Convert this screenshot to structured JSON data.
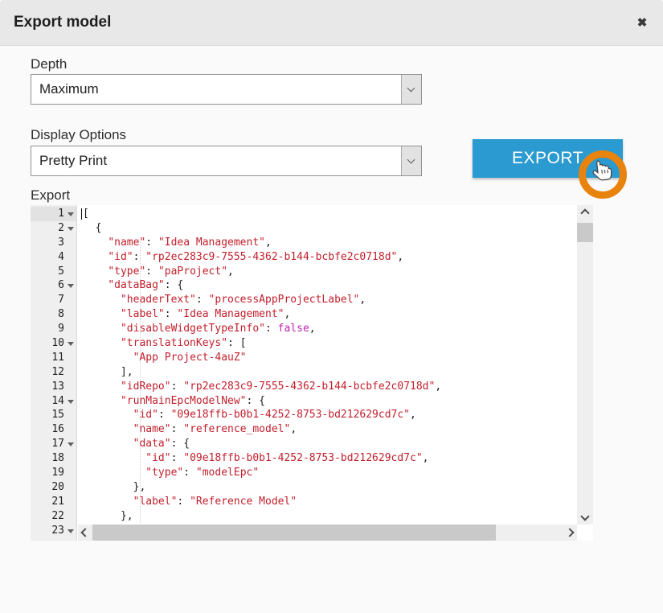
{
  "dialog": {
    "title": "Export model",
    "close_icon": "✖"
  },
  "form": {
    "depth_label": "Depth",
    "depth_value": "Maximum",
    "display_options_label": "Display Options",
    "display_options_value": "Pretty Print",
    "export_button_label": "EXPORT",
    "export_area_label": "Export"
  },
  "colors": {
    "accent_blue": "#2b9ad0",
    "annotation_ring_orange": "#e8830d",
    "syntax_string_red": "#c21f2c",
    "syntax_atom_magenta": "#bd22ae",
    "header_gray": "#e8e8e8"
  },
  "editor": {
    "language": "json",
    "active_line": 1,
    "lines": [
      {
        "n": 1,
        "fold": true,
        "seg": [
          [
            "p",
            "["
          ]
        ]
      },
      {
        "n": 2,
        "fold": true,
        "seg": [
          [
            "p",
            "  {"
          ]
        ]
      },
      {
        "n": 3,
        "fold": false,
        "seg": [
          [
            "p",
            "    "
          ],
          [
            "s",
            "\"name\""
          ],
          [
            "p",
            ": "
          ],
          [
            "s",
            "\"Idea Management\""
          ],
          [
            "p",
            ","
          ]
        ]
      },
      {
        "n": 4,
        "fold": false,
        "seg": [
          [
            "p",
            "    "
          ],
          [
            "s",
            "\"id\""
          ],
          [
            "p",
            ": "
          ],
          [
            "s",
            "\"rp2ec283c9-7555-4362-b144-bcbfe2c0718d\""
          ],
          [
            "p",
            ","
          ]
        ]
      },
      {
        "n": 5,
        "fold": false,
        "seg": [
          [
            "p",
            "    "
          ],
          [
            "s",
            "\"type\""
          ],
          [
            "p",
            ": "
          ],
          [
            "s",
            "\"paProject\""
          ],
          [
            "p",
            ","
          ]
        ]
      },
      {
        "n": 6,
        "fold": true,
        "seg": [
          [
            "p",
            "    "
          ],
          [
            "s",
            "\"dataBag\""
          ],
          [
            "p",
            ": {"
          ]
        ]
      },
      {
        "n": 7,
        "fold": false,
        "seg": [
          [
            "p",
            "      "
          ],
          [
            "s",
            "\"headerText\""
          ],
          [
            "p",
            ": "
          ],
          [
            "s",
            "\"processAppProjectLabel\""
          ],
          [
            "p",
            ","
          ]
        ]
      },
      {
        "n": 8,
        "fold": false,
        "seg": [
          [
            "p",
            "      "
          ],
          [
            "s",
            "\"label\""
          ],
          [
            "p",
            ": "
          ],
          [
            "s",
            "\"Idea Management\""
          ],
          [
            "p",
            ","
          ]
        ]
      },
      {
        "n": 9,
        "fold": false,
        "seg": [
          [
            "p",
            "      "
          ],
          [
            "s",
            "\"disableWidgetTypeInfo\""
          ],
          [
            "p",
            ": "
          ],
          [
            "a",
            "false"
          ],
          [
            "p",
            ","
          ]
        ]
      },
      {
        "n": 10,
        "fold": true,
        "seg": [
          [
            "p",
            "      "
          ],
          [
            "s",
            "\"translationKeys\""
          ],
          [
            "p",
            ": ["
          ]
        ]
      },
      {
        "n": 11,
        "fold": false,
        "seg": [
          [
            "p",
            "        "
          ],
          [
            "s",
            "\"App Project-4auZ\""
          ]
        ]
      },
      {
        "n": 12,
        "fold": false,
        "seg": [
          [
            "p",
            "      ],"
          ]
        ]
      },
      {
        "n": 13,
        "fold": false,
        "seg": [
          [
            "p",
            "      "
          ],
          [
            "s",
            "\"idRepo\""
          ],
          [
            "p",
            ": "
          ],
          [
            "s",
            "\"rp2ec283c9-7555-4362-b144-bcbfe2c0718d\""
          ],
          [
            "p",
            ","
          ]
        ]
      },
      {
        "n": 14,
        "fold": true,
        "seg": [
          [
            "p",
            "      "
          ],
          [
            "s",
            "\"runMainEpcModelNew\""
          ],
          [
            "p",
            ": {"
          ]
        ]
      },
      {
        "n": 15,
        "fold": false,
        "seg": [
          [
            "p",
            "        "
          ],
          [
            "s",
            "\"id\""
          ],
          [
            "p",
            ": "
          ],
          [
            "s",
            "\"09e18ffb-b0b1-4252-8753-bd212629cd7c\""
          ],
          [
            "p",
            ","
          ]
        ]
      },
      {
        "n": 16,
        "fold": false,
        "seg": [
          [
            "p",
            "        "
          ],
          [
            "s",
            "\"name\""
          ],
          [
            "p",
            ": "
          ],
          [
            "s",
            "\"reference_model\""
          ],
          [
            "p",
            ","
          ]
        ]
      },
      {
        "n": 17,
        "fold": true,
        "seg": [
          [
            "p",
            "        "
          ],
          [
            "s",
            "\"data\""
          ],
          [
            "p",
            ": {"
          ]
        ]
      },
      {
        "n": 18,
        "fold": false,
        "seg": [
          [
            "p",
            "          "
          ],
          [
            "s",
            "\"id\""
          ],
          [
            "p",
            ": "
          ],
          [
            "s",
            "\"09e18ffb-b0b1-4252-8753-bd212629cd7c\""
          ],
          [
            "p",
            ","
          ]
        ]
      },
      {
        "n": 19,
        "fold": false,
        "seg": [
          [
            "p",
            "          "
          ],
          [
            "s",
            "\"type\""
          ],
          [
            "p",
            ": "
          ],
          [
            "s",
            "\"modelEpc\""
          ]
        ]
      },
      {
        "n": 20,
        "fold": false,
        "seg": [
          [
            "p",
            "        },"
          ]
        ]
      },
      {
        "n": 21,
        "fold": false,
        "seg": [
          [
            "p",
            "        "
          ],
          [
            "s",
            "\"label\""
          ],
          [
            "p",
            ": "
          ],
          [
            "s",
            "\"Reference Model\""
          ]
        ]
      },
      {
        "n": 22,
        "fold": false,
        "seg": [
          [
            "p",
            "      },"
          ]
        ]
      },
      {
        "n": 23,
        "fold": true,
        "seg": []
      }
    ]
  }
}
